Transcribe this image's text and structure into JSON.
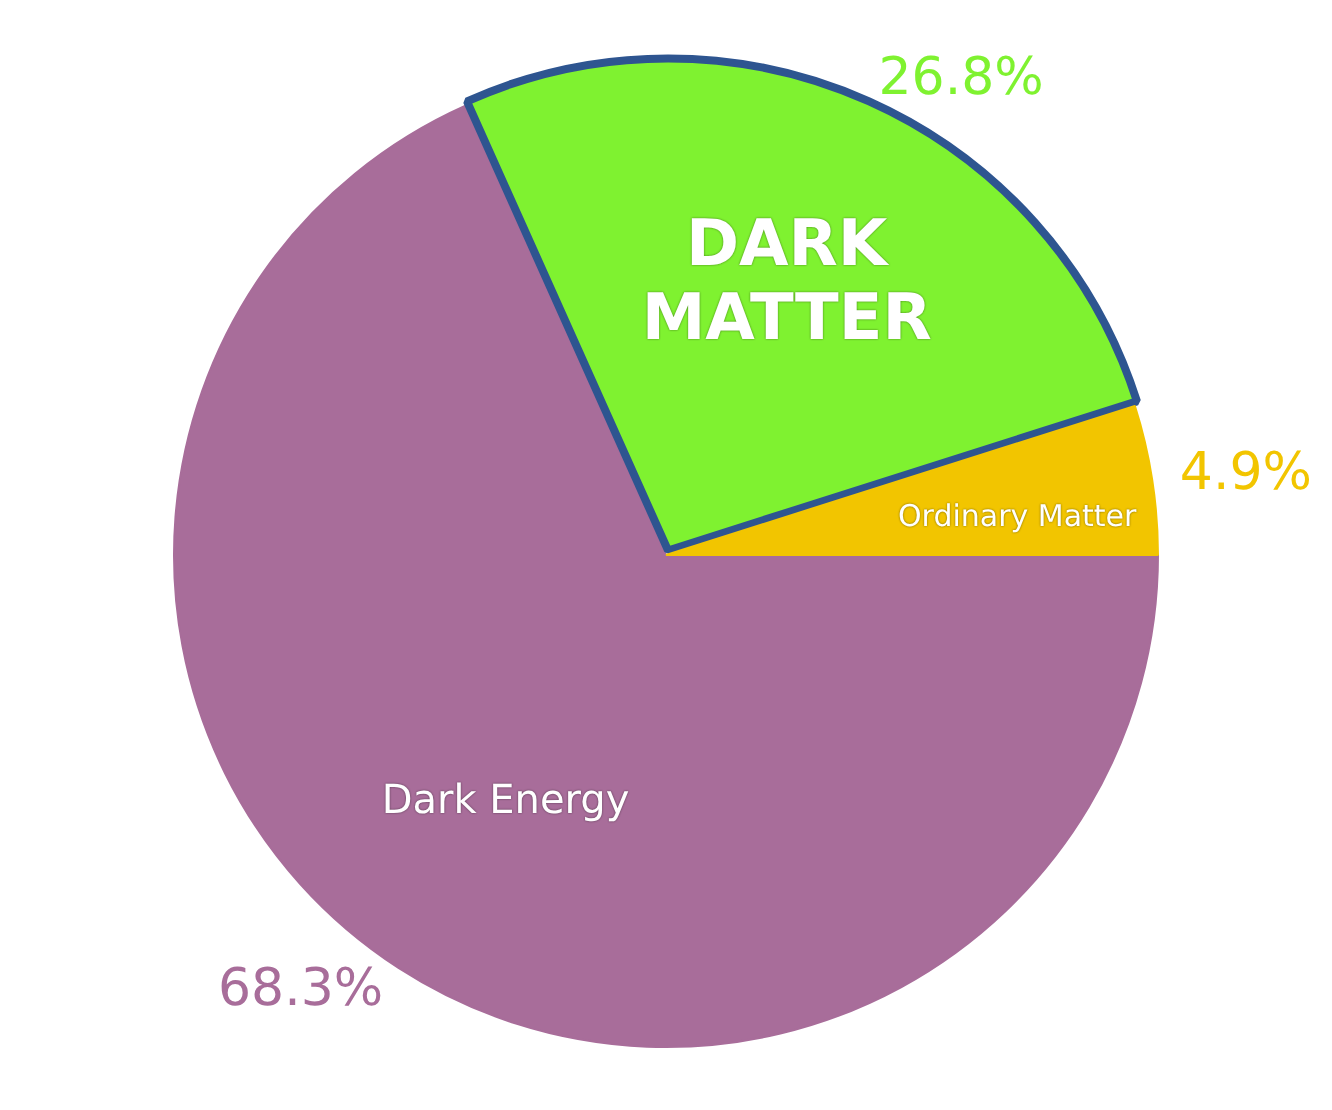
{
  "chart_data": {
    "type": "pie",
    "categories": [
      "Dark Energy",
      "DARK MATTER",
      "Ordinary Matter"
    ],
    "values": [
      68.3,
      26.8,
      4.9
    ],
    "colors": [
      "#a86d9a",
      "#7ff230",
      "#f2c500"
    ],
    "value_labels": [
      "68.3%",
      "26.8%",
      "4.9%"
    ],
    "legend": false
  }
}
